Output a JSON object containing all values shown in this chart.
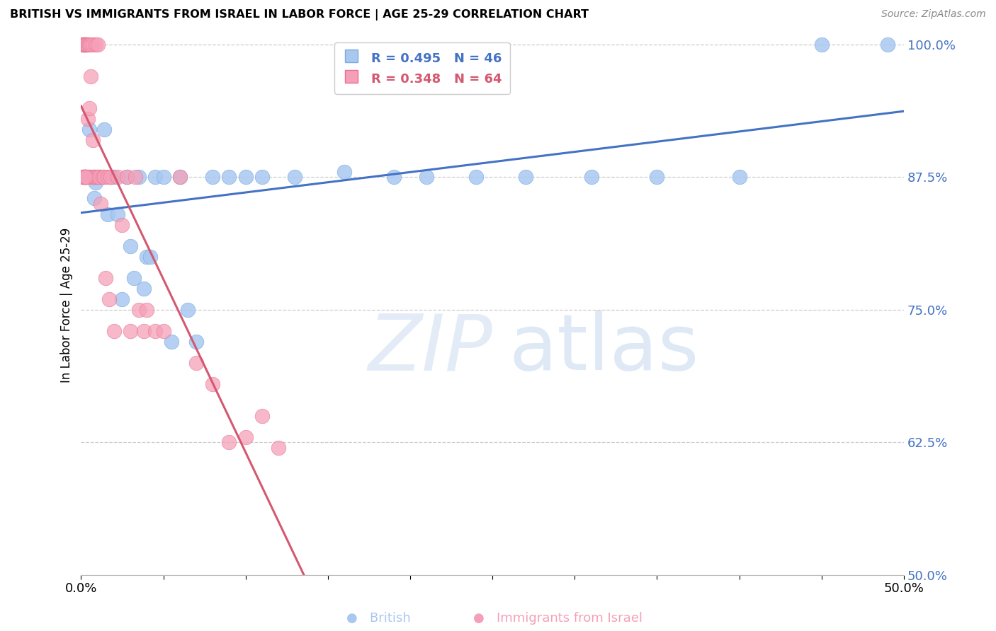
{
  "title": "BRITISH VS IMMIGRANTS FROM ISRAEL IN LABOR FORCE | AGE 25-29 CORRELATION CHART",
  "source": "Source: ZipAtlas.com",
  "ylabel": "In Labor Force | Age 25-29",
  "xlim": [
    0.0,
    0.5
  ],
  "ylim": [
    0.5,
    1.008
  ],
  "blue_R": 0.495,
  "blue_N": 46,
  "pink_R": 0.348,
  "pink_N": 64,
  "blue_color": "#a8c8f0",
  "pink_color": "#f5a0b8",
  "blue_edge_color": "#7aaae0",
  "pink_edge_color": "#e87090",
  "blue_line_color": "#4472c4",
  "pink_line_color": "#d45870",
  "blue_x": [
    0.001,
    0.002,
    0.003,
    0.003,
    0.004,
    0.005,
    0.006,
    0.007,
    0.008,
    0.009,
    0.01,
    0.012,
    0.014,
    0.016,
    0.018,
    0.02,
    0.022,
    0.025,
    0.028,
    0.03,
    0.032,
    0.035,
    0.038,
    0.04,
    0.042,
    0.045,
    0.05,
    0.055,
    0.06,
    0.065,
    0.07,
    0.08,
    0.09,
    0.1,
    0.11,
    0.13,
    0.16,
    0.19,
    0.21,
    0.24,
    0.27,
    0.31,
    0.35,
    0.4,
    0.45,
    0.49
  ],
  "blue_y": [
    0.875,
    0.875,
    0.875,
    0.875,
    0.875,
    0.92,
    0.875,
    0.875,
    0.855,
    0.87,
    0.875,
    0.875,
    0.92,
    0.84,
    0.875,
    0.875,
    0.84,
    0.76,
    0.875,
    0.81,
    0.78,
    0.875,
    0.77,
    0.8,
    0.8,
    0.875,
    0.875,
    0.72,
    0.875,
    0.75,
    0.72,
    0.875,
    0.875,
    0.875,
    0.875,
    0.875,
    0.88,
    0.875,
    0.875,
    0.875,
    0.875,
    0.875,
    0.875,
    0.875,
    1.0,
    1.0
  ],
  "pink_x": [
    0.001,
    0.001,
    0.001,
    0.001,
    0.001,
    0.002,
    0.002,
    0.002,
    0.002,
    0.002,
    0.002,
    0.003,
    0.003,
    0.003,
    0.003,
    0.003,
    0.003,
    0.004,
    0.004,
    0.004,
    0.004,
    0.005,
    0.005,
    0.005,
    0.006,
    0.006,
    0.007,
    0.007,
    0.008,
    0.008,
    0.009,
    0.009,
    0.01,
    0.01,
    0.011,
    0.012,
    0.013,
    0.014,
    0.015,
    0.016,
    0.017,
    0.018,
    0.02,
    0.022,
    0.025,
    0.028,
    0.03,
    0.033,
    0.035,
    0.038,
    0.04,
    0.045,
    0.05,
    0.06,
    0.07,
    0.08,
    0.09,
    0.1,
    0.11,
    0.12,
    0.001,
    0.002,
    0.002,
    0.003
  ],
  "pink_y": [
    1.0,
    1.0,
    1.0,
    1.0,
    0.875,
    1.0,
    1.0,
    1.0,
    1.0,
    1.0,
    0.875,
    1.0,
    1.0,
    1.0,
    1.0,
    0.875,
    0.875,
    1.0,
    1.0,
    0.93,
    0.875,
    1.0,
    0.94,
    0.875,
    1.0,
    0.97,
    1.0,
    0.91,
    0.875,
    0.875,
    1.0,
    0.875,
    1.0,
    0.875,
    0.875,
    0.85,
    0.875,
    0.875,
    0.78,
    0.875,
    0.76,
    0.875,
    0.73,
    0.875,
    0.83,
    0.875,
    0.73,
    0.875,
    0.75,
    0.73,
    0.75,
    0.73,
    0.73,
    0.875,
    0.7,
    0.68,
    0.625,
    0.63,
    0.65,
    0.62,
    0.875,
    0.875,
    0.875,
    0.875
  ]
}
